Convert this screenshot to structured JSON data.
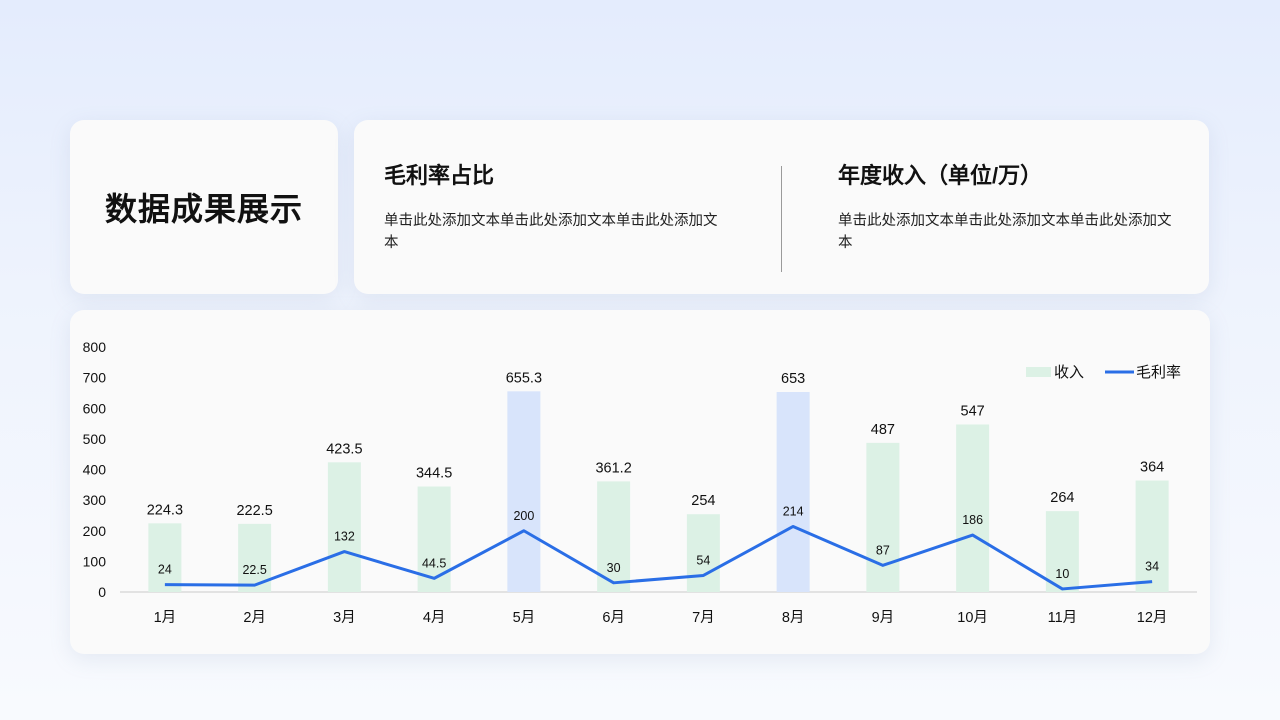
{
  "title_card": {
    "title": "数据成果展示"
  },
  "info": {
    "left": {
      "heading": "毛利率占比",
      "text": "单击此处添加文本单击此处添加文本单击此处添加文本"
    },
    "right": {
      "heading": "年度收入（单位/万）",
      "text": "单击此处添加文本单击此处添加文本单击此处添加文本"
    }
  },
  "colors": {
    "bar": "#dcf1e5",
    "bar_highlight": "#d8e4fb",
    "line": "#2a6ee6"
  },
  "chart_data": {
    "type": "bar",
    "title": "",
    "categories": [
      "1月",
      "2月",
      "3月",
      "4月",
      "5月",
      "6月",
      "7月",
      "8月",
      "9月",
      "10月",
      "11月",
      "12月"
    ],
    "series": [
      {
        "name": "收入",
        "type": "bar",
        "values": [
          224.3,
          222.5,
          423.5,
          344.5,
          655.3,
          361.2,
          254,
          653,
          487,
          547,
          264,
          364
        ],
        "highlight": [
          "5月",
          "8月"
        ]
      },
      {
        "name": "毛利率",
        "type": "line",
        "values": [
          24,
          22.5,
          132,
          44.5,
          200,
          30,
          54,
          214,
          87,
          186,
          10,
          34
        ]
      }
    ],
    "ylim": [
      0,
      800
    ],
    "yticks": [
      0,
      100,
      200,
      300,
      400,
      500,
      600,
      700,
      800
    ],
    "legend": "top-right",
    "grid": false
  }
}
